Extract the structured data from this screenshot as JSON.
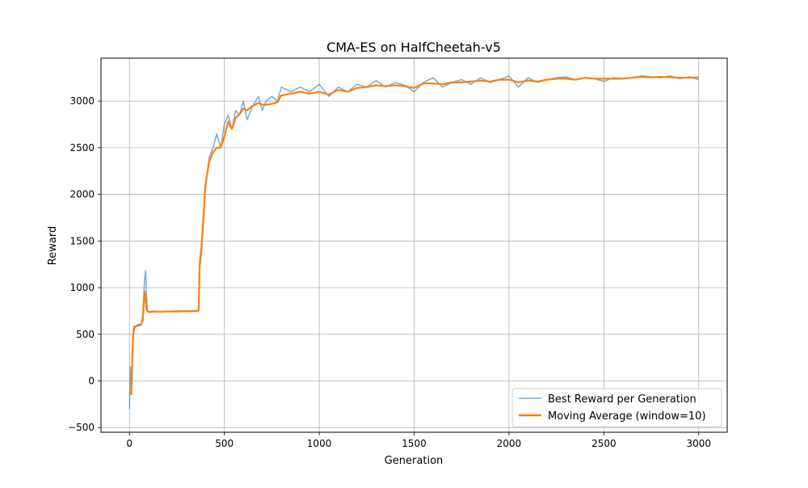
{
  "chart_data": {
    "type": "line",
    "title": "CMA-ES on HalfCheetah-v5",
    "xlabel": "Generation",
    "ylabel": "Reward",
    "xlim": [
      -150,
      3150
    ],
    "ylim": [
      -550,
      3460
    ],
    "xticks": [
      0,
      500,
      1000,
      1500,
      2000,
      2500,
      3000
    ],
    "yticks": [
      -500,
      0,
      500,
      1000,
      1500,
      2000,
      2500,
      3000
    ],
    "grid": true,
    "legend_position": "lower right",
    "series": [
      {
        "name": "Best Reward per Generation",
        "color": "#1f77b4",
        "style": "thin-noisy",
        "x": [
          0,
          5,
          10,
          15,
          20,
          25,
          30,
          40,
          50,
          60,
          70,
          80,
          85,
          90,
          95,
          100,
          110,
          130,
          150,
          200,
          250,
          300,
          350,
          365,
          370,
          380,
          390,
          400,
          420,
          440,
          460,
          480,
          500,
          520,
          540,
          560,
          580,
          600,
          620,
          650,
          680,
          700,
          720,
          750,
          780,
          800,
          850,
          900,
          950,
          1000,
          1050,
          1100,
          1150,
          1200,
          1250,
          1300,
          1350,
          1400,
          1450,
          1500,
          1550,
          1600,
          1650,
          1700,
          1750,
          1800,
          1850,
          1900,
          1950,
          2000,
          2050,
          2100,
          2150,
          2200,
          2250,
          2300,
          2350,
          2400,
          2450,
          2500,
          2550,
          2600,
          2650,
          2700,
          2750,
          2800,
          2850,
          2900,
          2950,
          3000
        ],
        "y": [
          -300,
          150,
          -50,
          300,
          560,
          590,
          580,
          600,
          610,
          600,
          700,
          1100,
          1180,
          900,
          760,
          740,
          745,
          750,
          740,
          745,
          750,
          745,
          750,
          760,
          1200,
          1380,
          1700,
          2050,
          2400,
          2500,
          2650,
          2500,
          2750,
          2850,
          2700,
          2900,
          2850,
          3000,
          2800,
          2950,
          3050,
          2900,
          3000,
          3050,
          3000,
          3150,
          3100,
          3150,
          3100,
          3180,
          3050,
          3150,
          3100,
          3180,
          3150,
          3220,
          3150,
          3200,
          3170,
          3100,
          3200,
          3250,
          3150,
          3200,
          3230,
          3180,
          3250,
          3200,
          3230,
          3270,
          3150,
          3250,
          3200,
          3230,
          3250,
          3260,
          3230,
          3250,
          3240,
          3210,
          3250,
          3240,
          3250,
          3270,
          3260,
          3250,
          3270,
          3240,
          3260,
          3230
        ]
      },
      {
        "name": "Moving Average (window=10)",
        "color": "#ff7f0e",
        "style": "thick-smooth",
        "x": [
          10,
          15,
          20,
          25,
          30,
          40,
          50,
          60,
          70,
          80,
          85,
          90,
          100,
          110,
          130,
          150,
          200,
          250,
          300,
          350,
          365,
          370,
          380,
          390,
          400,
          420,
          440,
          460,
          480,
          500,
          520,
          540,
          560,
          580,
          600,
          620,
          650,
          680,
          700,
          720,
          750,
          780,
          800,
          850,
          900,
          950,
          1000,
          1050,
          1100,
          1150,
          1200,
          1250,
          1300,
          1350,
          1400,
          1450,
          1500,
          1550,
          1600,
          1650,
          1700,
          1750,
          1800,
          1850,
          1900,
          1950,
          2000,
          2050,
          2100,
          2150,
          2200,
          2250,
          2300,
          2350,
          2400,
          2450,
          2500,
          2550,
          2600,
          2650,
          2700,
          2750,
          2800,
          2850,
          2900,
          2950,
          3000
        ],
        "y": [
          -150,
          250,
          500,
          560,
          580,
          590,
          595,
          600,
          650,
          960,
          880,
          760,
          740,
          740,
          745,
          742,
          745,
          745,
          748,
          748,
          755,
          1250,
          1450,
          1750,
          2100,
          2350,
          2450,
          2500,
          2500,
          2620,
          2780,
          2700,
          2820,
          2860,
          2920,
          2900,
          2950,
          2980,
          2960,
          2960,
          2970,
          2990,
          3060,
          3080,
          3100,
          3080,
          3100,
          3070,
          3120,
          3100,
          3140,
          3150,
          3170,
          3160,
          3170,
          3160,
          3140,
          3190,
          3190,
          3180,
          3200,
          3200,
          3210,
          3220,
          3210,
          3230,
          3230,
          3200,
          3220,
          3210,
          3230,
          3240,
          3240,
          3230,
          3250,
          3240,
          3240,
          3240,
          3240,
          3250,
          3260,
          3255,
          3260,
          3255,
          3250,
          3250,
          3255
        ]
      }
    ]
  }
}
